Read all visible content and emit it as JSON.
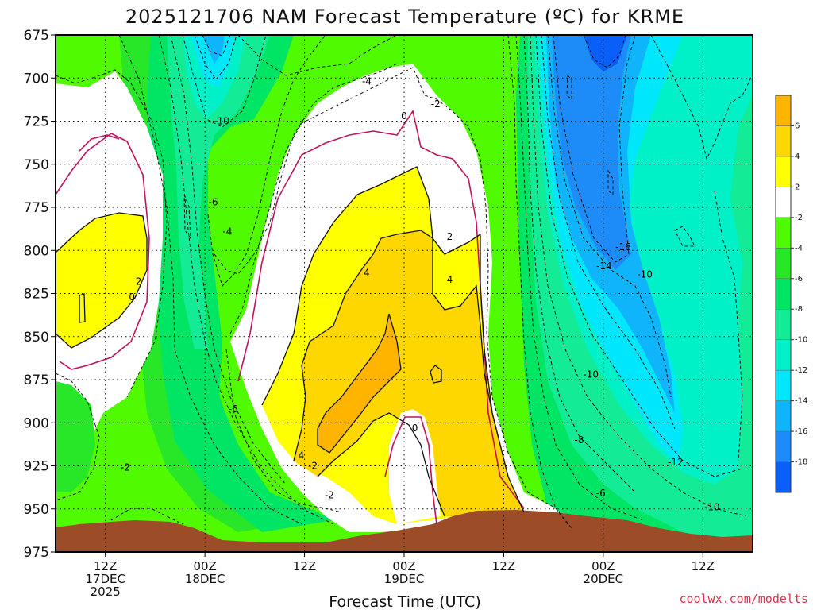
{
  "chart_data": {
    "type": "heatmap",
    "title": "2025121706 NAM Forecast Temperature (ºC) for KRME",
    "xlabel": "Forecast Time (UTC)",
    "ylabel": "",
    "credit": "coolwx.com/modelts",
    "ylim": [
      975,
      675
    ],
    "y_ticks": [
      "675",
      "700",
      "725",
      "750",
      "775",
      "800",
      "825",
      "850",
      "875",
      "900",
      "925",
      "950",
      "975"
    ],
    "x_ticks": [
      {
        "hour": 6,
        "lines": [
          "12Z",
          "17DEC",
          "2025"
        ]
      },
      {
        "hour": 18,
        "lines": [
          "00Z",
          "18DEC"
        ]
      },
      {
        "hour": 30,
        "lines": [
          "12Z"
        ]
      },
      {
        "hour": 42,
        "lines": [
          "00Z",
          "19DEC"
        ]
      },
      {
        "hour": 54,
        "lines": [
          "12Z"
        ]
      },
      {
        "hour": 66,
        "lines": [
          "00Z",
          "20DEC"
        ]
      },
      {
        "hour": 78,
        "lines": [
          "12Z"
        ]
      }
    ],
    "xlim_hours": [
      0,
      84
    ],
    "grid": true,
    "colorbar": {
      "levels": [
        -20,
        -18,
        -16,
        -14,
        -12,
        -10,
        -8,
        -6,
        -4,
        -2,
        2,
        4,
        6,
        8
      ],
      "labels": [
        "6",
        "4",
        "2",
        "-2",
        "-4",
        "-6",
        "-8",
        "-10",
        "-12",
        "-14",
        "-16",
        "-18"
      ],
      "colors": [
        "#0a5ff8",
        "#1e8cf8",
        "#0fb4fa",
        "#00e6fa",
        "#00f0c8",
        "#14eb96",
        "#00e664",
        "#28e628",
        "#50fa00",
        "#ffffff",
        "#ffff00",
        "#ffd700",
        "#ffb400"
      ]
    },
    "contour_labels": [
      {
        "text": "-4",
        "hour": 37.5,
        "p": 702
      },
      {
        "text": "-2",
        "hour": 45.8,
        "p": 715
      },
      {
        "text": "0",
        "hour": 42,
        "p": 722
      },
      {
        "text": "-10",
        "hour": 20,
        "p": 725
      },
      {
        "text": "-6",
        "hour": 19,
        "p": 772
      },
      {
        "text": "-4",
        "hour": 20.7,
        "p": 789
      },
      {
        "text": "2",
        "hour": 10,
        "p": 818
      },
      {
        "text": "0",
        "hour": 9.2,
        "p": 827
      },
      {
        "text": "2",
        "hour": 47.5,
        "p": 792
      },
      {
        "text": "4",
        "hour": 37.5,
        "p": 813
      },
      {
        "text": "4",
        "hour": 47.5,
        "p": 817
      },
      {
        "text": "-6",
        "hour": 21.4,
        "p": 892
      },
      {
        "text": "0",
        "hour": 43.3,
        "p": 903
      },
      {
        "text": "4",
        "hour": 29.6,
        "p": 919
      },
      {
        "text": "-2",
        "hour": 31,
        "p": 925
      },
      {
        "text": "-2",
        "hour": 33,
        "p": 942
      },
      {
        "text": "-2",
        "hour": 8.4,
        "p": 926
      },
      {
        "text": "-16",
        "hour": 68.4,
        "p": 798
      },
      {
        "text": "-14",
        "hour": 66.1,
        "p": 809
      },
      {
        "text": "-10",
        "hour": 71,
        "p": 814
      },
      {
        "text": "-10",
        "hour": 64.5,
        "p": 872
      },
      {
        "text": "-8",
        "hour": 63.1,
        "p": 910
      },
      {
        "text": "-6",
        "hour": 65.7,
        "p": 941
      },
      {
        "text": "-12",
        "hour": 74.7,
        "p": 923
      },
      {
        "text": "-10",
        "hour": 79.1,
        "p": 949
      }
    ]
  }
}
